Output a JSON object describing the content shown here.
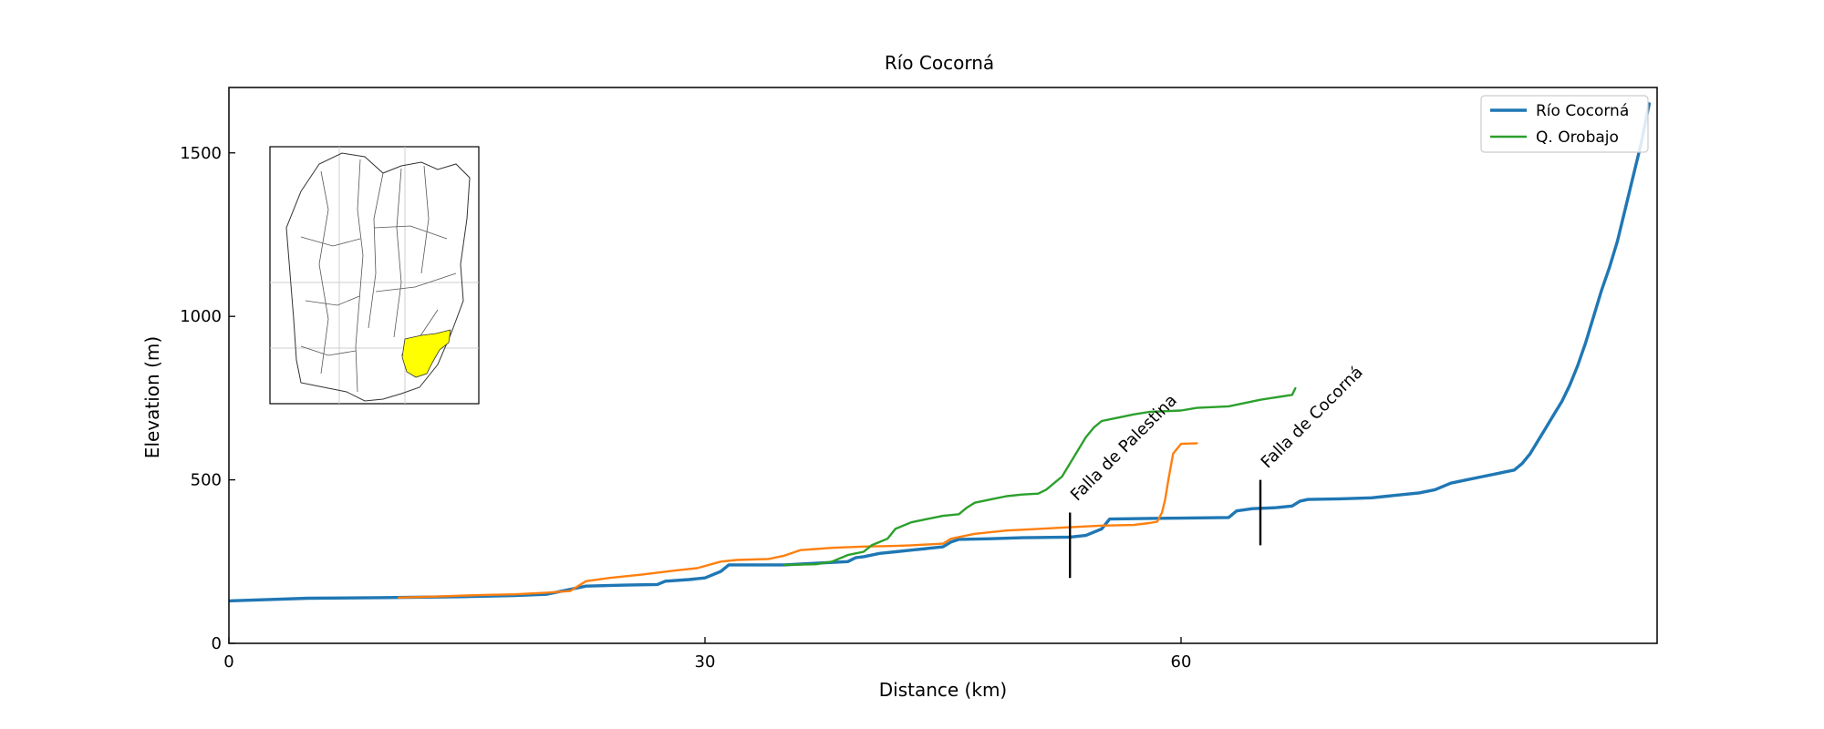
{
  "chart_data": {
    "type": "line",
    "title": "Río Cocorná",
    "xlabel": "Distance (km)",
    "ylabel": "Elevation (m)",
    "xlim": [
      0,
      90
    ],
    "ylim": [
      0,
      1700
    ],
    "xticks": [
      0,
      30,
      60
    ],
    "yticks": [
      0,
      500,
      1000,
      1500
    ],
    "grid": false,
    "legend_position": "top-right",
    "legend": [
      "Río Cocorná",
      "Q. Orobajo"
    ],
    "series": [
      {
        "name": "Río Cocorná",
        "color": "#1f77b4",
        "points": [
          [
            0,
            130
          ],
          [
            5,
            138
          ],
          [
            10,
            140
          ],
          [
            15,
            143
          ],
          [
            18,
            146
          ],
          [
            20,
            150
          ],
          [
            21.5,
            165
          ],
          [
            22.5,
            175
          ],
          [
            25,
            178
          ],
          [
            27,
            180
          ],
          [
            27.5,
            190
          ],
          [
            29,
            195
          ],
          [
            30,
            200
          ],
          [
            31,
            220
          ],
          [
            31.5,
            240
          ],
          [
            35,
            240
          ],
          [
            37,
            245
          ],
          [
            39,
            250
          ],
          [
            39.5,
            262
          ],
          [
            40,
            265
          ],
          [
            41,
            275
          ],
          [
            42,
            280
          ],
          [
            43,
            285
          ],
          [
            45,
            295
          ],
          [
            45.5,
            310
          ],
          [
            46,
            318
          ],
          [
            48,
            320
          ],
          [
            50,
            323
          ],
          [
            53,
            325
          ],
          [
            54,
            330
          ],
          [
            55,
            350
          ],
          [
            55.5,
            380
          ],
          [
            58,
            382
          ],
          [
            60,
            383
          ],
          [
            63,
            385
          ],
          [
            63.5,
            405
          ],
          [
            64.5,
            412
          ],
          [
            66,
            415
          ],
          [
            67,
            420
          ],
          [
            67.5,
            435
          ],
          [
            68,
            440
          ],
          [
            70,
            442
          ],
          [
            72,
            445
          ],
          [
            73,
            450
          ],
          [
            74,
            455
          ],
          [
            75,
            460
          ],
          [
            76,
            470
          ],
          [
            77,
            490
          ],
          [
            78,
            500
          ],
          [
            79,
            510
          ],
          [
            80,
            520
          ],
          [
            81,
            530
          ],
          [
            81.5,
            550
          ],
          [
            82,
            580
          ],
          [
            82.5,
            620
          ],
          [
            83,
            660
          ],
          [
            83.5,
            700
          ],
          [
            84,
            740
          ],
          [
            84.5,
            790
          ],
          [
            85,
            850
          ],
          [
            85.5,
            920
          ],
          [
            86,
            1000
          ],
          [
            86.5,
            1080
          ],
          [
            87,
            1150
          ],
          [
            87.5,
            1230
          ],
          [
            88,
            1330
          ],
          [
            88.5,
            1430
          ],
          [
            89,
            1530
          ],
          [
            89.5,
            1650
          ]
        ]
      },
      {
        "name": "",
        "color": "#ff7f0e",
        "points": [
          [
            10.7,
            140
          ],
          [
            13,
            143
          ],
          [
            16,
            148
          ],
          [
            18,
            150
          ],
          [
            20,
            155
          ],
          [
            21.5,
            160
          ],
          [
            22,
            175
          ],
          [
            22.5,
            190
          ],
          [
            24,
            200
          ],
          [
            26,
            210
          ],
          [
            28,
            222
          ],
          [
            29.5,
            230
          ],
          [
            31,
            250
          ],
          [
            32,
            255
          ],
          [
            34,
            258
          ],
          [
            35,
            268
          ],
          [
            36,
            285
          ],
          [
            38,
            292
          ],
          [
            40,
            296
          ],
          [
            42,
            298
          ],
          [
            43,
            300
          ],
          [
            45,
            305
          ],
          [
            45.5,
            320
          ],
          [
            47,
            335
          ],
          [
            49,
            345
          ],
          [
            51,
            350
          ],
          [
            53,
            355
          ],
          [
            55,
            360
          ],
          [
            57,
            362
          ],
          [
            58,
            368
          ],
          [
            58.5,
            372
          ],
          [
            58.8,
            400
          ],
          [
            59,
            440
          ],
          [
            59.2,
            500
          ],
          [
            59.5,
            580
          ],
          [
            60,
            610
          ],
          [
            61,
            612
          ]
        ]
      },
      {
        "name": "Q. Orobajo",
        "color": "#2ca02c",
        "points": [
          [
            35,
            240
          ],
          [
            37,
            242
          ],
          [
            38,
            250
          ],
          [
            39,
            270
          ],
          [
            40,
            280
          ],
          [
            40.5,
            300
          ],
          [
            41.5,
            320
          ],
          [
            42,
            350
          ],
          [
            43,
            370
          ],
          [
            44,
            380
          ],
          [
            45,
            390
          ],
          [
            46,
            395
          ],
          [
            46.5,
            415
          ],
          [
            47,
            430
          ],
          [
            48,
            440
          ],
          [
            49,
            450
          ],
          [
            50,
            455
          ],
          [
            51,
            458
          ],
          [
            51.5,
            470
          ],
          [
            52,
            490
          ],
          [
            52.5,
            510
          ],
          [
            53,
            550
          ],
          [
            53.5,
            590
          ],
          [
            54,
            630
          ],
          [
            54.5,
            660
          ],
          [
            55,
            680
          ],
          [
            56,
            690
          ],
          [
            57,
            700
          ],
          [
            58,
            708
          ],
          [
            60,
            712
          ],
          [
            61,
            720
          ],
          [
            63,
            725
          ],
          [
            65,
            745
          ],
          [
            67,
            760
          ],
          [
            67.2,
            780
          ]
        ]
      }
    ],
    "fault_markers": [
      {
        "label": "Falla de Palestina",
        "x": 53,
        "y_range": [
          200,
          400
        ]
      },
      {
        "label": "Falla de Cocorná",
        "x": 65,
        "y_range": [
          300,
          500
        ]
      }
    ],
    "inset": {
      "description_icon": "watershed-location-map",
      "highlight_color": "#ffff00"
    }
  }
}
